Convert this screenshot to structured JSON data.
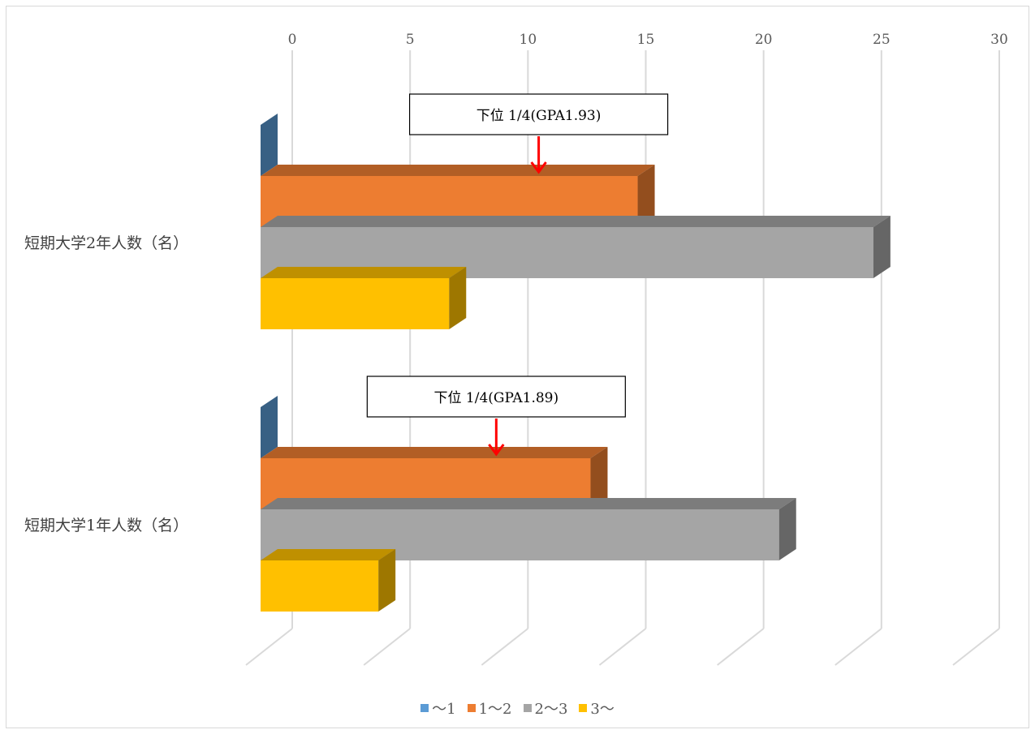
{
  "chart_data": {
    "type": "bar",
    "orientation": "horizontal",
    "style": "3d-clustered",
    "categories": [
      "短期大学2年人数（名）",
      "短期大学1年人数（名）"
    ],
    "series": [
      {
        "name": "～1",
        "color": "#5B9BD5",
        "values": [
          0,
          0
        ]
      },
      {
        "name": "1～2",
        "color": "#ED7D31",
        "values": [
          16,
          14
        ]
      },
      {
        "name": "2～3",
        "color": "#A5A5A5",
        "values": [
          26,
          22
        ]
      },
      {
        "name": "3～",
        "color": "#FFC000",
        "values": [
          8,
          5
        ]
      }
    ],
    "xlim": [
      0,
      30
    ],
    "xticks": [
      "0",
      "5",
      "10",
      "15",
      "20",
      "25",
      "30"
    ],
    "gridlines": true,
    "legend_position": "bottom",
    "annotations": [
      {
        "category": "短期大学2年人数（名）",
        "text": "下位 1/4(GPA1.93)",
        "arrow_value": 11.8,
        "arrow_color": "#FF0000"
      },
      {
        "category": "短期大学1年人数（名）",
        "text": "下位 1/4(GPA1.89)",
        "arrow_value": 10.0,
        "arrow_color": "#FF0000"
      }
    ]
  }
}
